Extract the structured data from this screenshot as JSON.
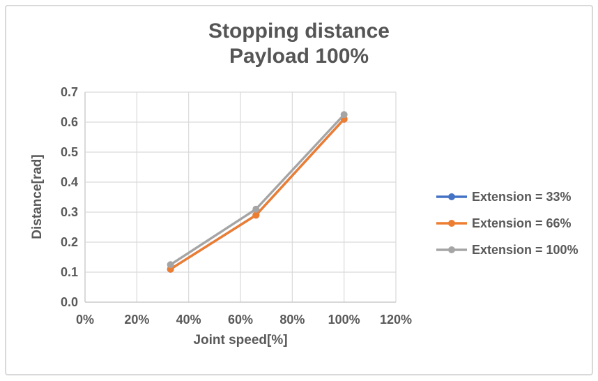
{
  "title": {
    "line1": "Stopping distance",
    "line2": "Payload 100%"
  },
  "chart_data": {
    "type": "line",
    "title": "Stopping distance Payload 100%",
    "xlabel": "Joint speed[%]",
    "ylabel": "Distance[rad]",
    "x": [
      33,
      66,
      100
    ],
    "series": [
      {
        "name": "Extension = 33%",
        "color": "#4472C4",
        "values": [
          0.11,
          0.29,
          0.61
        ]
      },
      {
        "name": "Extension = 66%",
        "color": "#ED7D31",
        "values": [
          0.11,
          0.29,
          0.61
        ]
      },
      {
        "name": "Extension = 100%",
        "color": "#A5A5A5",
        "values": [
          0.125,
          0.31,
          0.625
        ]
      }
    ],
    "xlim": [
      0,
      120
    ],
    "ylim": [
      0.0,
      0.7
    ],
    "x_tick_values": [
      0,
      20,
      40,
      60,
      80,
      100,
      120
    ],
    "x_tick_labels": [
      "0%",
      "20%",
      "40%",
      "60%",
      "80%",
      "100%",
      "120%"
    ],
    "y_tick_values": [
      0.0,
      0.1,
      0.2,
      0.3,
      0.4,
      0.5,
      0.6,
      0.7
    ],
    "y_tick_labels": [
      "0.0",
      "0.1",
      "0.2",
      "0.3",
      "0.4",
      "0.5",
      "0.6",
      "0.7"
    ],
    "grid": true,
    "legend_position": "right",
    "colors": {
      "gridline": "#d9d9d9",
      "axis_line": "#c0c0c0",
      "text": "#595959",
      "title_text": "#555555",
      "frame_border": "#d9d9d9",
      "background": "#ffffff"
    }
  }
}
